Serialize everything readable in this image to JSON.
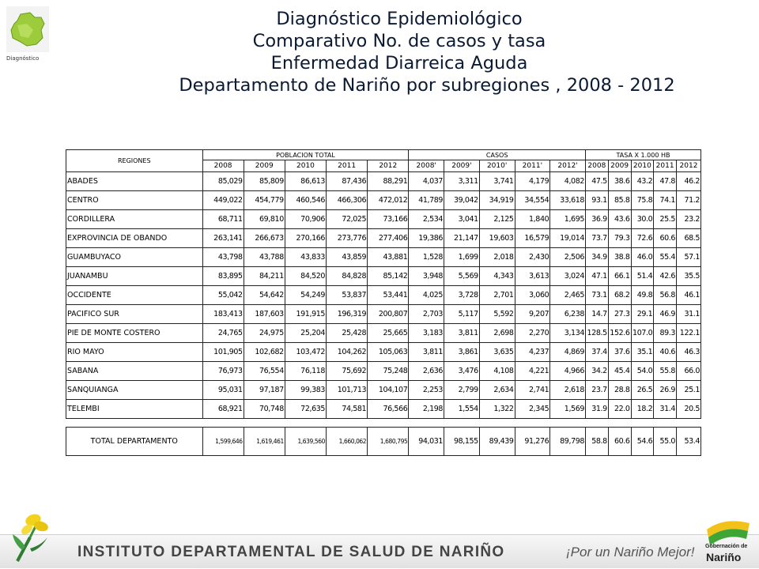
{
  "header": {
    "logo_caption": "Diagnóstico",
    "title_lines": [
      "Diagnóstico Epidemiológico",
      "Comparativo No. de casos y tasa",
      "Enfermedad Diarreica Aguda",
      "Departamento de Nariño por subregiones ,  2008 - 2012"
    ]
  },
  "chart_data": {
    "type": "table",
    "header": {
      "region_label": "REGIONES",
      "groups": [
        "POBLACION  TOTAL",
        "CASOS",
        "TASA  X 1.000  HB"
      ],
      "population_years": [
        "2008",
        "2009",
        "2010",
        "2011",
        "2012"
      ],
      "cases_years": [
        "2008'",
        "2009'",
        "2010'",
        "2011'",
        "2012'"
      ],
      "rate_years": [
        "2008",
        "2009",
        "2010",
        "2011",
        "2012"
      ]
    },
    "rows": [
      {
        "region": "ABADES",
        "pop": [
          "85,029",
          "85,809",
          "86,613",
          "87,436",
          "88,291"
        ],
        "cases": [
          "4,037",
          "3,311",
          "3,741",
          "4,179",
          "4,082"
        ],
        "rate": [
          "47.5",
          "38.6",
          "43.2",
          "47.8",
          "46.2"
        ]
      },
      {
        "region": "CENTRO",
        "pop": [
          "449,022",
          "454,779",
          "460,546",
          "466,306",
          "472,012"
        ],
        "cases": [
          "41,789",
          "39,042",
          "34,919",
          "34,554",
          "33,618"
        ],
        "rate": [
          "93.1",
          "85.8",
          "75.8",
          "74.1",
          "71.2"
        ]
      },
      {
        "region": "CORDILLERA",
        "pop": [
          "68,711",
          "69,810",
          "70,906",
          "72,025",
          "73,166"
        ],
        "cases": [
          "2,534",
          "3,041",
          "2,125",
          "1,840",
          "1,695"
        ],
        "rate": [
          "36.9",
          "43.6",
          "30.0",
          "25.5",
          "23.2"
        ]
      },
      {
        "region": "EXPROVINCIA DE OBANDO",
        "pop": [
          "263,141",
          "266,673",
          "270,166",
          "273,776",
          "277,406"
        ],
        "cases": [
          "19,386",
          "21,147",
          "19,603",
          "16,579",
          "19,014"
        ],
        "rate": [
          "73.7",
          "79.3",
          "72.6",
          "60.6",
          "68.5"
        ]
      },
      {
        "region": "GUAMBUYACO",
        "pop": [
          "43,798",
          "43,788",
          "43,833",
          "43,859",
          "43,881"
        ],
        "cases": [
          "1,528",
          "1,699",
          "2,018",
          "2,430",
          "2,506"
        ],
        "rate": [
          "34.9",
          "38.8",
          "46.0",
          "55.4",
          "57.1"
        ]
      },
      {
        "region": "JUANAMBU",
        "pop": [
          "83,895",
          "84,211",
          "84,520",
          "84,828",
          "85,142"
        ],
        "cases": [
          "3,948",
          "5,569",
          "4,343",
          "3,613",
          "3,024"
        ],
        "rate": [
          "47.1",
          "66.1",
          "51.4",
          "42.6",
          "35.5"
        ]
      },
      {
        "region": "OCCIDENTE",
        "pop": [
          "55,042",
          "54,642",
          "54,249",
          "53,837",
          "53,441"
        ],
        "cases": [
          "4,025",
          "3,728",
          "2,701",
          "3,060",
          "2,465"
        ],
        "rate": [
          "73.1",
          "68.2",
          "49.8",
          "56.8",
          "46.1"
        ]
      },
      {
        "region": "PACIFICO SUR",
        "pop": [
          "183,413",
          "187,603",
          "191,915",
          "196,319",
          "200,807"
        ],
        "cases": [
          "2,703",
          "5,117",
          "5,592",
          "9,207",
          "6,238"
        ],
        "rate": [
          "14.7",
          "27.3",
          "29.1",
          "46.9",
          "31.1"
        ]
      },
      {
        "region": "PIE DE MONTE COSTERO",
        "pop": [
          "24,765",
          "24,975",
          "25,204",
          "25,428",
          "25,665"
        ],
        "cases": [
          "3,183",
          "3,811",
          "2,698",
          "2,270",
          "3,134"
        ],
        "rate": [
          "128.5",
          "152.6",
          "107.0",
          "89.3",
          "122.1"
        ]
      },
      {
        "region": "RIO MAYO",
        "pop": [
          "101,905",
          "102,682",
          "103,472",
          "104,262",
          "105,063"
        ],
        "cases": [
          "3,811",
          "3,861",
          "3,635",
          "4,237",
          "4,869"
        ],
        "rate": [
          "37.4",
          "37.6",
          "35.1",
          "40.6",
          "46.3"
        ]
      },
      {
        "region": "SABANA",
        "pop": [
          "76,973",
          "76,554",
          "76,118",
          "75,692",
          "75,248"
        ],
        "cases": [
          "2,636",
          "3,476",
          "4,108",
          "4,221",
          "4,966"
        ],
        "rate": [
          "34.2",
          "45.4",
          "54.0",
          "55.8",
          "66.0"
        ]
      },
      {
        "region": "SANQUIANGA",
        "pop": [
          "95,031",
          "97,187",
          "99,383",
          "101,713",
          "104,107"
        ],
        "cases": [
          "2,253",
          "2,799",
          "2,634",
          "2,741",
          "2,618"
        ],
        "rate": [
          "23.7",
          "28.8",
          "26.5",
          "26.9",
          "25.1"
        ]
      },
      {
        "region": "TELEMBI",
        "pop": [
          "68,921",
          "70,748",
          "72,635",
          "74,581",
          "76,566"
        ],
        "cases": [
          "2,198",
          "1,554",
          "1,322",
          "2,345",
          "1,569"
        ],
        "rate": [
          "31.9",
          "22.0",
          "18.2",
          "31.4",
          "20.5"
        ]
      }
    ],
    "total": {
      "region": "TOTAL DEPARTAMENTO",
      "pop": [
        "1,599,646",
        "1,619,461",
        "1,639,560",
        "1,660,062",
        "1,680,795"
      ],
      "cases": [
        "94,031",
        "98,155",
        "89,439",
        "91,276",
        "89,798"
      ],
      "rate": [
        "58.8",
        "60.6",
        "54.6",
        "55.0",
        "53.4"
      ]
    }
  },
  "footer": {
    "institute": "INSTITUTO DEPARTAMENTAL DE SALUD DE NARIÑO",
    "slogan": "¡Por un Nariño Mejor!",
    "gob_line1": "Gobernación de",
    "gob_line2": "Nariño"
  }
}
